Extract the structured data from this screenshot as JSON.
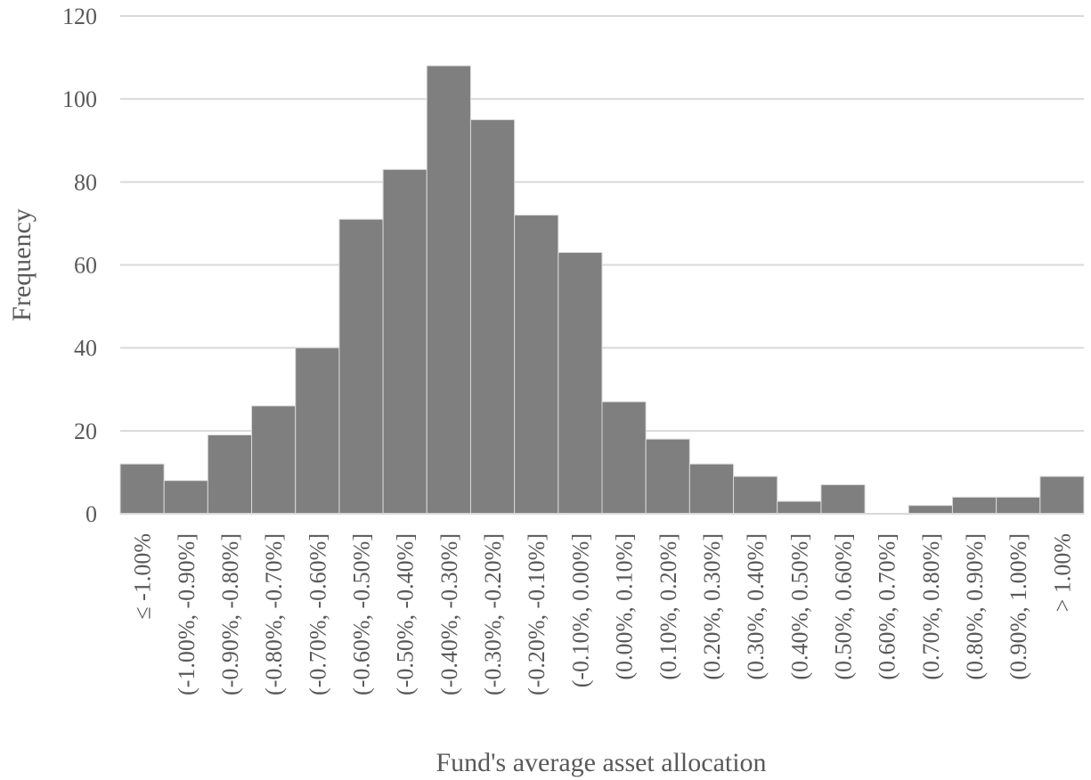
{
  "chart_data": {
    "type": "bar",
    "xlabel": "Fund's average asset allocation",
    "ylabel": "Frequency",
    "ylim": [
      0,
      120
    ],
    "yticks": [
      "0",
      "20",
      "40",
      "60",
      "80",
      "100",
      "120"
    ],
    "grid": true,
    "bar_color": "#7f7f7f",
    "categories": [
      "≤ -1.00%",
      "(-1.00%, -0.90%]",
      "(-0.90%, -0.80%]",
      "(-0.80%, -0.70%]",
      "(-0.70%, -0.60%]",
      "(-0.60%, -0.50%]",
      "(-0.50%, -0.40%]",
      "(-0.40%, -0.30%]",
      "(-0.30%, -0.20%]",
      "(-0.20%, -0.10%]",
      "(-0.10%, 0.00%]",
      "(0.00%, 0.10%]",
      "(0.10%, 0.20%]",
      "(0.20%, 0.30%]",
      "(0.30%, 0.40%]",
      "(0.40%, 0.50%]",
      "(0.50%, 0.60%]",
      "(0.60%, 0.70%]",
      "(0.70%, 0.80%]",
      "(0.80%, 0.90%]",
      "(0.90%, 1.00%]",
      "> 1.00%"
    ],
    "values": [
      12,
      8,
      19,
      26,
      40,
      71,
      83,
      108,
      95,
      72,
      63,
      27,
      18,
      12,
      9,
      3,
      7,
      0,
      2,
      4,
      4,
      9
    ]
  }
}
